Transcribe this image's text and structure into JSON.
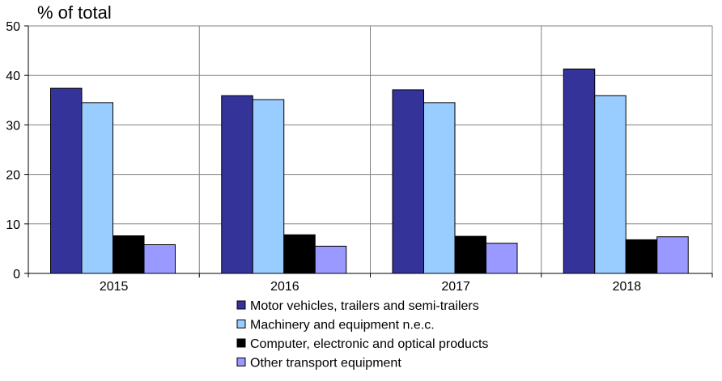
{
  "chart_data": {
    "type": "bar",
    "title": "",
    "ylabel": "% of total",
    "xlabel": "",
    "categories": [
      "2015",
      "2016",
      "2017",
      "2018"
    ],
    "ylim": [
      0,
      50
    ],
    "yticks": [
      "0",
      "10",
      "20",
      "30",
      "40",
      "50"
    ],
    "grid": true,
    "legend_position": "bottom",
    "series": [
      {
        "name": "Motor vehicles, trailers and semi-trailers",
        "color": "#333399",
        "values": [
          37.4,
          35.9,
          37.1,
          41.3
        ]
      },
      {
        "name": "Machinery and equipment n.e.c.",
        "color": "#99CCFF",
        "values": [
          34.5,
          35.1,
          34.5,
          35.9
        ]
      },
      {
        "name": "Computer, electronic and optical products",
        "color": "#000000",
        "values": [
          7.6,
          7.8,
          7.5,
          6.8
        ]
      },
      {
        "name": "Other transport equipment",
        "color": "#9999FF",
        "values": [
          5.8,
          5.5,
          6.1,
          7.4
        ]
      }
    ]
  }
}
